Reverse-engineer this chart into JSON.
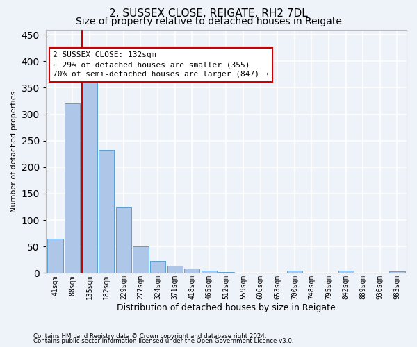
{
  "title1": "2, SUSSEX CLOSE, REIGATE, RH2 7DL",
  "title2": "Size of property relative to detached houses in Reigate",
  "xlabel": "Distribution of detached houses by size in Reigate",
  "ylabel": "Number of detached properties",
  "footnote1": "Contains HM Land Registry data © Crown copyright and database right 2024.",
  "footnote2": "Contains public sector information licensed under the Open Government Licence v3.0.",
  "categories": [
    "41sqm",
    "88sqm",
    "135sqm",
    "182sqm",
    "229sqm",
    "277sqm",
    "324sqm",
    "371sqm",
    "418sqm",
    "465sqm",
    "512sqm",
    "559sqm",
    "606sqm",
    "653sqm",
    "700sqm",
    "748sqm",
    "795sqm",
    "842sqm",
    "889sqm",
    "936sqm",
    "983sqm"
  ],
  "values": [
    65,
    320,
    360,
    233,
    125,
    50,
    23,
    14,
    9,
    5,
    2,
    0,
    0,
    0,
    4,
    0,
    0,
    4,
    0,
    0,
    3
  ],
  "bar_color": "#aec6e8",
  "bar_edge_color": "#5a9fd4",
  "property_line_color": "#cc0000",
  "annotation_text": "2 SUSSEX CLOSE: 132sqm\n← 29% of detached houses are smaller (355)\n70% of semi-detached houses are larger (847) →",
  "annotation_box_color": "#ffffff",
  "annotation_box_edge": "#cc0000",
  "ylim": [
    0,
    460
  ],
  "yticks": [
    0,
    50,
    100,
    150,
    200,
    250,
    300,
    350,
    400,
    450
  ],
  "bg_color": "#eef2f9",
  "grid_color": "#ffffff",
  "title_fontsize": 11,
  "subtitle_fontsize": 10
}
